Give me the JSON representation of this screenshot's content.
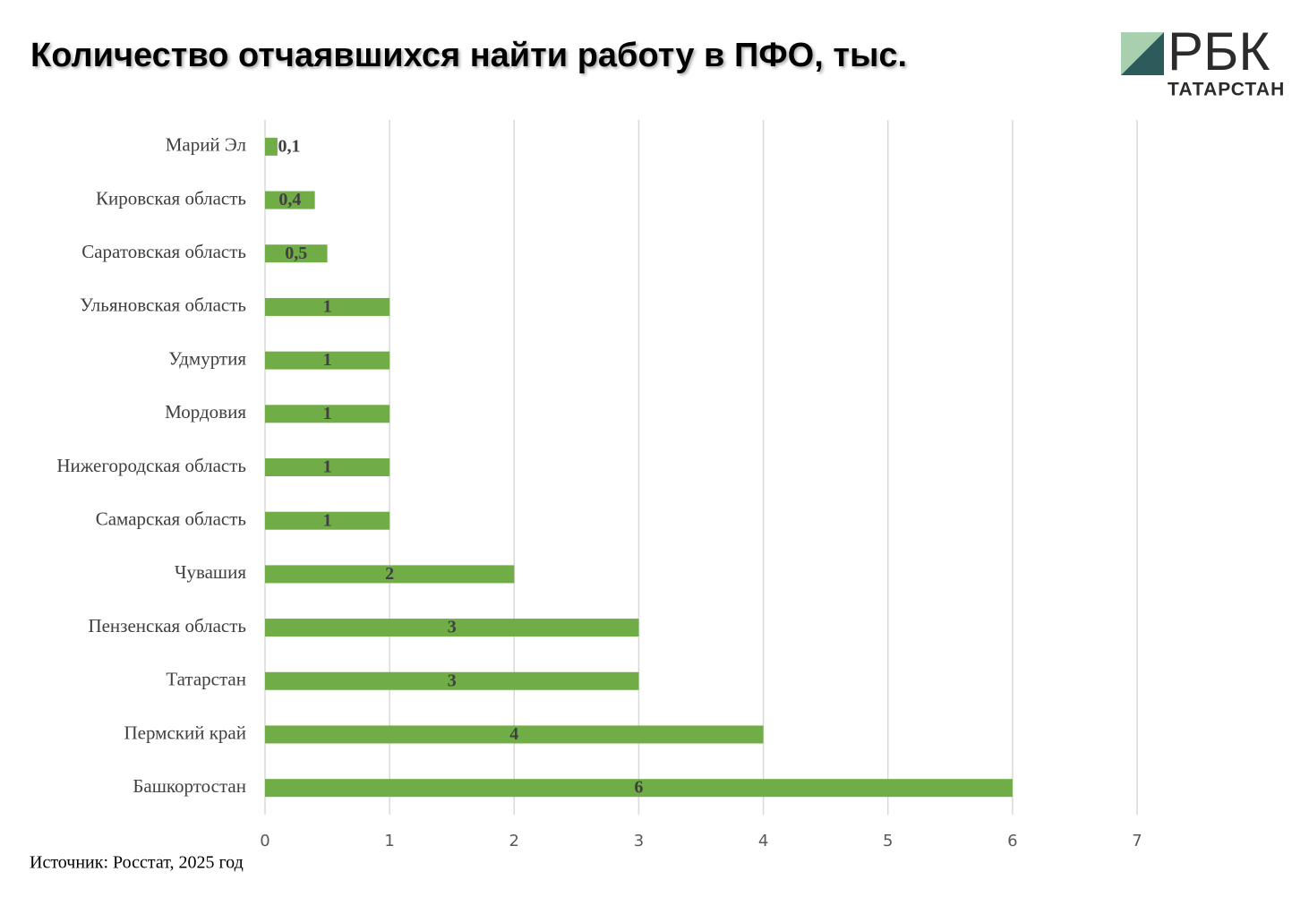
{
  "chart_data": {
    "type": "bar",
    "orientation": "horizontal",
    "title": "Количество отчаявшихся найти работу в ПФО, тыс.",
    "logo_text": "РБК",
    "logo_subtext": "ТАТАРСТАН",
    "source": "Источник: Росстат, 2025 год",
    "categories": [
      "Марий Эл",
      "Кировская область",
      "Саратовская область",
      "Ульяновская область",
      "Удмуртия",
      "Мордовия",
      "Нижегородская область",
      "Самарская область",
      "Чувашия",
      "Пензенская область",
      "Татарстан",
      "Пермский край",
      "Башкортостан"
    ],
    "values": [
      0.1,
      0.4,
      0.5,
      1,
      1,
      1,
      1,
      1,
      2,
      3,
      3,
      4,
      6
    ],
    "value_labels": [
      "0,1",
      "0,4",
      "0,5",
      "1",
      "1",
      "1",
      "1",
      "1",
      "2",
      "3",
      "3",
      "4",
      "6"
    ],
    "color": "#70ad47",
    "xlim": [
      0,
      7
    ],
    "xticks": [
      0,
      1,
      2,
      3,
      4,
      5,
      6,
      7
    ],
    "grid": true
  }
}
